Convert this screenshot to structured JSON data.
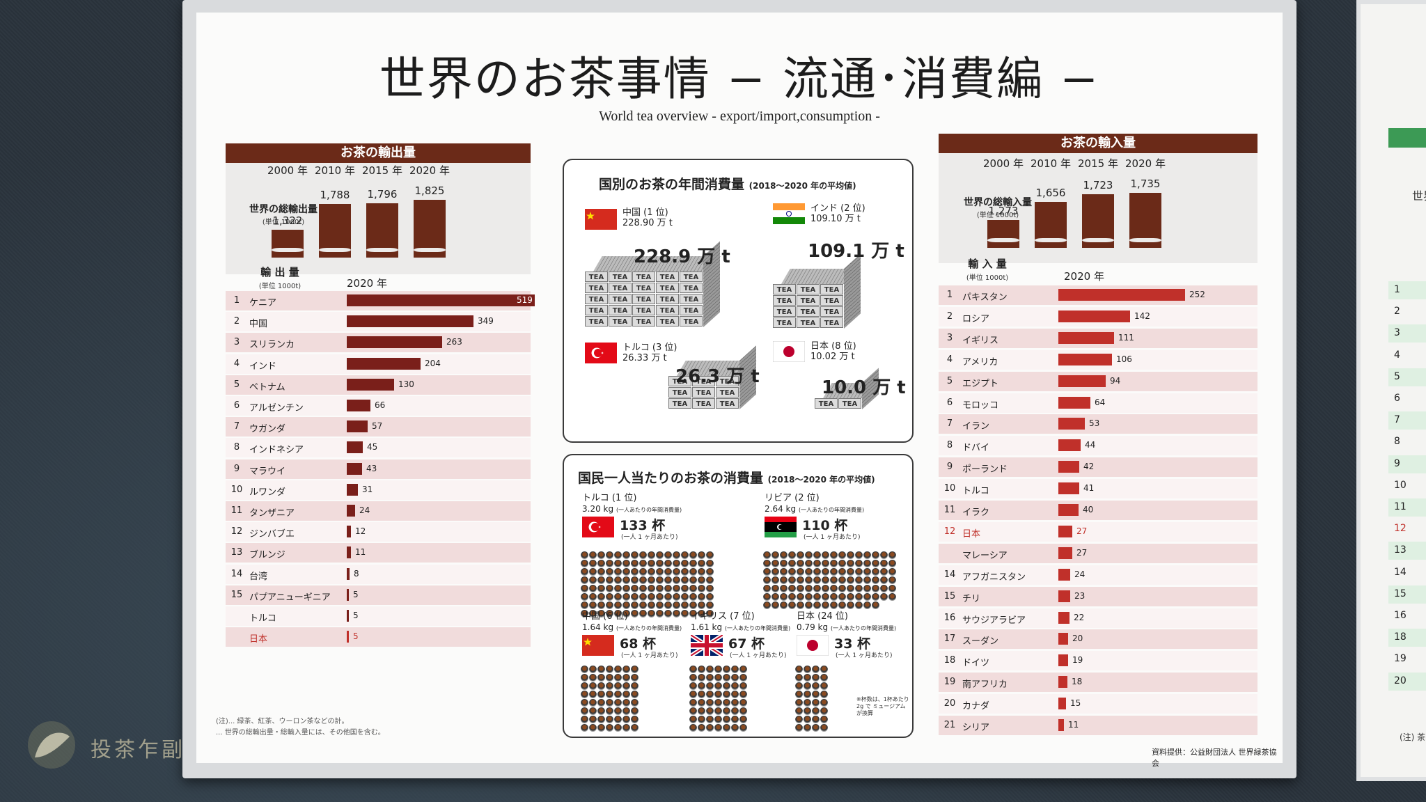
{
  "title": "世界のお茶事情 − 流通･消費編 −",
  "subtitle": "World tea overview  - export/import,consumption -",
  "export": {
    "header": "お茶の輸出量",
    "world_label": "世界の総輸出量",
    "world_unit": "(単位 1000t)",
    "years": [
      {
        "year": "2000 年",
        "value": 1322,
        "label": "1,322"
      },
      {
        "year": "2010 年",
        "value": 1788,
        "label": "1,788"
      },
      {
        "year": "2015 年",
        "value": 1796,
        "label": "1,796"
      },
      {
        "year": "2020 年",
        "value": 1825,
        "label": "1,825"
      }
    ],
    "list_header": "輸 出 量",
    "list_unit": "(単位 1000t)",
    "list_year": "2020 年",
    "rows": [
      {
        "rank": "1",
        "name": "ケニア",
        "value": 519
      },
      {
        "rank": "2",
        "name": "中国",
        "value": 349
      },
      {
        "rank": "3",
        "name": "スリランカ",
        "value": 263
      },
      {
        "rank": "4",
        "name": "インド",
        "value": 204
      },
      {
        "rank": "5",
        "name": "ベトナム",
        "value": 130
      },
      {
        "rank": "6",
        "name": "アルゼンチン",
        "value": 66
      },
      {
        "rank": "7",
        "name": "ウガンダ",
        "value": 57
      },
      {
        "rank": "8",
        "name": "インドネシア",
        "value": 45
      },
      {
        "rank": "9",
        "name": "マラウイ",
        "value": 43
      },
      {
        "rank": "10",
        "name": "ルワンダ",
        "value": 31
      },
      {
        "rank": "11",
        "name": "タンザニア",
        "value": 24
      },
      {
        "rank": "12",
        "name": "ジンバブエ",
        "value": 12
      },
      {
        "rank": "13",
        "name": "ブルンジ",
        "value": 11
      },
      {
        "rank": "14",
        "name": "台湾",
        "value": 8
      },
      {
        "rank": "15",
        "name": "パプアニューギニア",
        "value": 5
      },
      {
        "rank": "",
        "name": "トルコ",
        "value": 5
      },
      {
        "rank": "",
        "name": "日本",
        "value": 5,
        "highlight": true
      }
    ]
  },
  "import": {
    "header": "お茶の輸入量",
    "world_label": "世界の総輸入量",
    "world_unit": "(単位 1000t)",
    "years": [
      {
        "year": "2000 年",
        "value": 1273,
        "label": "1,273"
      },
      {
        "year": "2010 年",
        "value": 1656,
        "label": "1,656"
      },
      {
        "year": "2015 年",
        "value": 1723,
        "label": "1,723"
      },
      {
        "year": "2020 年",
        "value": 1735,
        "label": "1,735"
      }
    ],
    "list_header": "輸 入 量",
    "list_unit": "(単位 1000t)",
    "list_year": "2020 年",
    "rows": [
      {
        "rank": "1",
        "name": "パキスタン",
        "value": 252
      },
      {
        "rank": "2",
        "name": "ロシア",
        "value": 142
      },
      {
        "rank": "3",
        "name": "イギリス",
        "value": 111
      },
      {
        "rank": "4",
        "name": "アメリカ",
        "value": 106
      },
      {
        "rank": "5",
        "name": "エジプト",
        "value": 94
      },
      {
        "rank": "6",
        "name": "モロッコ",
        "value": 64
      },
      {
        "rank": "7",
        "name": "イラン",
        "value": 53
      },
      {
        "rank": "8",
        "name": "ドバイ",
        "value": 44
      },
      {
        "rank": "9",
        "name": "ポーランド",
        "value": 42
      },
      {
        "rank": "10",
        "name": "トルコ",
        "value": 41
      },
      {
        "rank": "11",
        "name": "イラク",
        "value": 40
      },
      {
        "rank": "12",
        "name": "日本",
        "value": 27,
        "highlight": true
      },
      {
        "rank": "",
        "name": "マレーシア",
        "value": 27
      },
      {
        "rank": "14",
        "name": "アフガニスタン",
        "value": 24
      },
      {
        "rank": "15",
        "name": "チリ",
        "value": 23
      },
      {
        "rank": "16",
        "name": "サウジアラビア",
        "value": 22
      },
      {
        "rank": "17",
        "name": "スーダン",
        "value": 20
      },
      {
        "rank": "18",
        "name": "ドイツ",
        "value": 19
      },
      {
        "rank": "19",
        "name": "南アフリカ",
        "value": 18
      },
      {
        "rank": "20",
        "name": "カナダ",
        "value": 15
      },
      {
        "rank": "21",
        "name": "シリア",
        "value": 11
      }
    ]
  },
  "annual": {
    "title": "国別のお茶の年間消費量",
    "title_note": "(2018〜2020 年の平均値)",
    "countries": [
      {
        "name": "中国 (1 位)",
        "amount": "228.90 万 t",
        "big": "228.9 万 t",
        "flag": "cn"
      },
      {
        "name": "インド (2 位)",
        "amount": "109.10 万 t",
        "big": "109.1 万 t",
        "flag": "in"
      },
      {
        "name": "トルコ (3 位)",
        "amount": "26.33 万 t",
        "big": "26.3 万 t",
        "flag": "tr"
      },
      {
        "name": "日本 (8 位)",
        "amount": "10.02 万 t",
        "big": "10.0 万 t",
        "flag": "jp"
      }
    ],
    "block_label": "TEA"
  },
  "percapita": {
    "title": "国民一人当たりのお茶の消費量",
    "title_note": "(2018〜2020 年の平均値)",
    "kg_note": "(一人あたりの年間消費量)",
    "cups_note": "(一人 1 ヶ月あたり)",
    "countries": [
      {
        "name": "トルコ (1 位)",
        "kg": "3.20 kg",
        "cups": "133 杯",
        "count": 133,
        "flag": "tr"
      },
      {
        "name": "リビア (2 位)",
        "kg": "2.64 kg",
        "cups": "110 杯",
        "count": 110,
        "flag": "ly"
      },
      {
        "name": "中国 (6 位)",
        "kg": "1.64 kg",
        "cups": "68 杯",
        "count": 68,
        "flag": "cn"
      },
      {
        "name": "イギリス (7 位)",
        "kg": "1.61 kg",
        "cups": "67 杯",
        "count": 67,
        "flag": "gb"
      },
      {
        "name": "日本 (24 位)",
        "kg": "0.79 kg",
        "cups": "33 杯",
        "count": 33,
        "flag": "jp"
      }
    ],
    "footnote": "※杯数は、1杯あたり 2g で ミュージアムが換算"
  },
  "footnotes": {
    "line1": "(注)... 緑茶、紅茶、ウーロン茶などの計。",
    "line2": "... 世界の総輸出量・総輸入量には、その他国を含む。"
  },
  "credit": "資料提供：公益財団法人 世界緑茶協会",
  "watermark": "投茶乍副",
  "right_panel": {
    "label": "世界",
    "ranks": [
      "1",
      "2",
      "3",
      "4",
      "5",
      "6",
      "7",
      "8",
      "9",
      "10",
      "11",
      "12",
      "13",
      "14",
      "15",
      "16",
      "18",
      "19",
      "20"
    ],
    "note": "(注) 茶"
  },
  "colors": {
    "header_brown": "#6b2a18",
    "bar_dark": "#7a1f1a",
    "bar_red": "#c0302a",
    "highlight": "#c0302a",
    "row_even": "#f1dcdc"
  }
}
